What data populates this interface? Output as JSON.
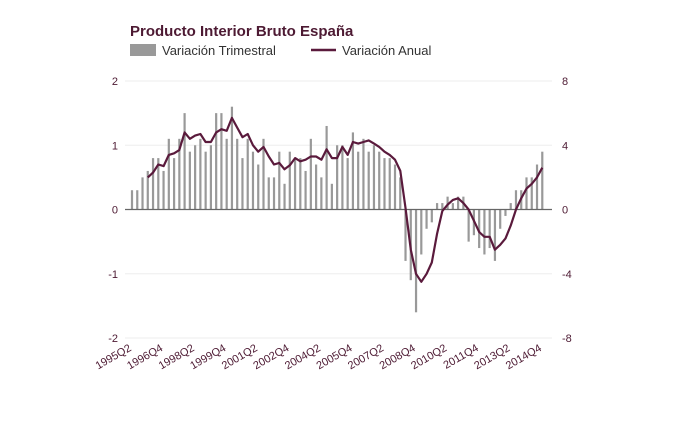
{
  "chart_data": {
    "type": "bar+line",
    "title": "Producto Interior Bruto España",
    "legend_position": "top-left",
    "grid": true,
    "colors": {
      "bars": "#999999",
      "line": "#5a1a3c",
      "title": "#4d1a33",
      "grid": "#eeeeee",
      "zero": "#666666"
    },
    "x_tick_labels": [
      "1995Q2",
      "1996Q4",
      "1998Q2",
      "1999Q4",
      "2001Q2",
      "2002Q4",
      "2004Q2",
      "2005Q4",
      "2007Q2",
      "2008Q4",
      "2010Q2",
      "2011Q4",
      "2013Q2",
      "2014Q4"
    ],
    "first_period": "1995Q2",
    "last_period": "2014Q4",
    "y_left": {
      "lim": [
        -2,
        2
      ],
      "ticks": [
        "2",
        "1",
        "0",
        "-1",
        "-2"
      ]
    },
    "y_right": {
      "lim": [
        -8,
        8
      ],
      "ticks": [
        "8",
        "4",
        "0",
        "-4",
        "-8"
      ]
    },
    "series": [
      {
        "name": "Variación Trimestral",
        "type": "bar",
        "axis": "left",
        "values": [
          0.3,
          0.3,
          0.5,
          0.6,
          0.8,
          0.8,
          0.6,
          1.1,
          0.8,
          1.1,
          1.5,
          0.9,
          1.0,
          1.1,
          0.9,
          1.0,
          1.5,
          1.5,
          1.1,
          1.6,
          1.1,
          0.8,
          1.1,
          0.9,
          0.7,
          1.1,
          0.5,
          0.5,
          0.9,
          0.4,
          0.9,
          0.8,
          0.8,
          0.6,
          1.1,
          0.7,
          0.5,
          1.3,
          0.4,
          1.0,
          1.0,
          0.8,
          1.2,
          0.9,
          1.1,
          0.9,
          1.0,
          0.9,
          0.8,
          0.8,
          0.7,
          0.5,
          -0.8,
          -1.1,
          -1.6,
          -0.7,
          -0.3,
          -0.2,
          0.1,
          0.1,
          0.2,
          0.1,
          0.2,
          0.2,
          -0.5,
          -0.4,
          -0.6,
          -0.7,
          -0.6,
          -0.8,
          -0.3,
          -0.1,
          0.1,
          0.3,
          0.3,
          0.5,
          0.5,
          0.7,
          0.9
        ]
      },
      {
        "name": "Variación Anual",
        "type": "line",
        "axis": "right",
        "values": [
          null,
          null,
          null,
          2.0,
          2.3,
          2.8,
          2.7,
          3.4,
          3.5,
          3.7,
          4.8,
          4.4,
          4.6,
          4.7,
          4.2,
          4.2,
          4.8,
          5.0,
          4.9,
          5.7,
          5.1,
          4.5,
          4.7,
          4.0,
          3.6,
          3.9,
          3.3,
          2.8,
          2.9,
          2.5,
          2.75,
          3.2,
          3.0,
          3.1,
          3.3,
          3.3,
          3.1,
          3.75,
          3.2,
          3.2,
          3.9,
          3.4,
          4.2,
          4.1,
          4.2,
          4.3,
          4.1,
          3.9,
          3.6,
          3.4,
          3.1,
          2.4,
          0.1,
          -2.5,
          -4.0,
          -4.5,
          -4.0,
          -3.3,
          -1.5,
          -0.1,
          0.3,
          0.6,
          0.7,
          0.4,
          0.0,
          -0.7,
          -1.4,
          -1.7,
          -1.7,
          -2.5,
          -2.2,
          -1.8,
          -1.0,
          0.0,
          0.7,
          1.3,
          1.6,
          2.0,
          2.6
        ]
      }
    ]
  }
}
